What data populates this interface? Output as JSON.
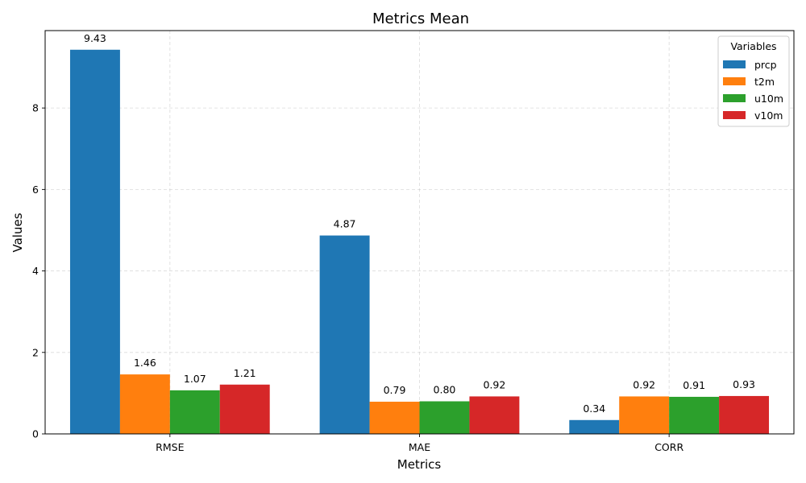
{
  "chart_data": {
    "type": "bar",
    "title": "Metrics Mean",
    "xlabel": "Metrics",
    "ylabel": "Values",
    "categories": [
      "RMSE",
      "MAE",
      "CORR"
    ],
    "ylim": [
      0,
      9.9
    ],
    "yticks": [
      0,
      2,
      4,
      6,
      8
    ],
    "grid": true,
    "legend": {
      "title": "Variables",
      "position": "top-right"
    },
    "series": [
      {
        "name": "prcp",
        "color": "#1f77b4",
        "values": [
          9.43,
          4.87,
          0.34
        ],
        "labels": [
          "9.43",
          "4.87",
          "0.34"
        ]
      },
      {
        "name": "t2m",
        "color": "#ff7f0e",
        "values": [
          1.46,
          0.79,
          0.92
        ],
        "labels": [
          "1.46",
          "0.79",
          "0.92"
        ]
      },
      {
        "name": "u10m",
        "color": "#2ca02c",
        "values": [
          1.07,
          0.8,
          0.91
        ],
        "labels": [
          "1.07",
          "0.80",
          "0.91"
        ]
      },
      {
        "name": "v10m",
        "color": "#d62728",
        "values": [
          1.21,
          0.92,
          0.93
        ],
        "labels": [
          "1.21",
          "0.92",
          "0.93"
        ]
      }
    ]
  }
}
